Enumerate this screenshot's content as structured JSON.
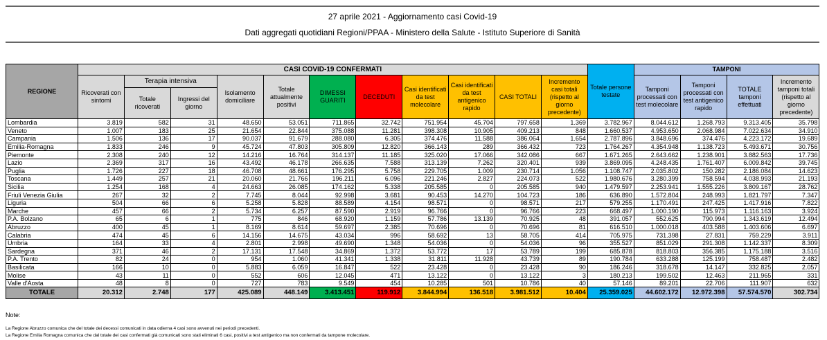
{
  "title": "27 aprile 2021 - Aggiornamento casi Covid-19",
  "subtitle": "Dati aggregati quotidiani Regioni/PPAA - Ministero della Salute - Istituto Superiore di Sanità",
  "headers": {
    "regione": "REGIONE",
    "casi_group": "CASI COVID-19 CONFERMATI",
    "tamponi_group": "TAMPONI",
    "terapia_group": "Terapia intensiva",
    "cols": [
      "Ricoverati con sintomi",
      "Totale ricoverati",
      "Ingressi del giorno",
      "Isolamento domiciliare",
      "Totale attualmente positivi",
      "DIMESSI GUARITI",
      "DECEDUTI",
      "Casi identificati da test molecolare",
      "Casi identificati da test antigenico rapido",
      "CASI TOTALI",
      "Incremento casi totali (rispetto al giorno precedente)",
      "Totale persone testate",
      "Tamponi processati con test molecolare",
      "Tamponi processati con test antigenico rapido",
      "TOTALE tamponi effettuati",
      "Incremento tamponi totali (rispetto al giorno precedente)"
    ]
  },
  "rows": [
    [
      "Lombardia",
      "3.819",
      "582",
      "31",
      "48.650",
      "53.051",
      "711.865",
      "32.742",
      "751.954",
      "45.704",
      "797.658",
      "1.369",
      "3.782.967",
      "8.044.612",
      "1.268.793",
      "9.313.405",
      "35.798"
    ],
    [
      "Veneto",
      "1.007",
      "183",
      "25",
      "21.654",
      "22.844",
      "375.088",
      "11.281",
      "398.308",
      "10.905",
      "409.213",
      "848",
      "1.660.537",
      "4.953.650",
      "2.068.984",
      "7.022.634",
      "34.910"
    ],
    [
      "Campania",
      "1.506",
      "136",
      "17",
      "90.037",
      "91.679",
      "288.080",
      "6.305",
      "374.476",
      "11.588",
      "386.064",
      "1.654",
      "2.787.896",
      "3.848.696",
      "374.476",
      "4.223.172",
      "19.689"
    ],
    [
      "Emilia-Romagna",
      "1.833",
      "246",
      "9",
      "45.724",
      "47.803",
      "305.809",
      "12.820",
      "366.143",
      "289",
      "366.432",
      "723",
      "1.764.267",
      "4.354.948",
      "1.138.723",
      "5.493.671",
      "30.756"
    ],
    [
      "Piemonte",
      "2.308",
      "240",
      "12",
      "14.216",
      "16.764",
      "314.137",
      "11.185",
      "325.020",
      "17.066",
      "342.086",
      "667",
      "1.671.265",
      "2.643.662",
      "1.238.901",
      "3.882.563",
      "17.736"
    ],
    [
      "Lazio",
      "2.369",
      "317",
      "16",
      "43.492",
      "46.178",
      "266.635",
      "7.588",
      "313.139",
      "7.262",
      "320.401",
      "939",
      "3.869.095",
      "4.248.435",
      "1.761.407",
      "6.009.842",
      "39.745"
    ],
    [
      "Puglia",
      "1.726",
      "227",
      "18",
      "46.708",
      "48.661",
      "176.295",
      "5.758",
      "229.705",
      "1.009",
      "230.714",
      "1.056",
      "1.108.747",
      "2.035.802",
      "150.282",
      "2.186.084",
      "14.623"
    ],
    [
      "Toscana",
      "1.449",
      "257",
      "21",
      "20.060",
      "21.766",
      "196.211",
      "6.096",
      "221.246",
      "2.827",
      "224.073",
      "522",
      "1.980.676",
      "3.280.399",
      "758.594",
      "4.038.993",
      "21.193"
    ],
    [
      "Sicilia",
      "1.254",
      "168",
      "4",
      "24.663",
      "26.085",
      "174.162",
      "5.338",
      "205.585",
      "0",
      "205.585",
      "940",
      "1.479.597",
      "2.253.941",
      "1.555.226",
      "3.809.167",
      "28.762"
    ],
    [
      "Friuli Venezia Giulia",
      "267",
      "32",
      "2",
      "7.745",
      "8.044",
      "92.998",
      "3.681",
      "90.453",
      "14.270",
      "104.723",
      "186",
      "636.890",
      "1.572.804",
      "248.993",
      "1.821.797",
      "7.347"
    ],
    [
      "Liguria",
      "504",
      "66",
      "6",
      "5.258",
      "5.828",
      "88.589",
      "4.154",
      "98.571",
      "0",
      "98.571",
      "217",
      "579.255",
      "1.170.491",
      "247.425",
      "1.417.916",
      "7.822"
    ],
    [
      "Marche",
      "457",
      "66",
      "2",
      "5.734",
      "6.257",
      "87.590",
      "2.919",
      "96.766",
      "0",
      "96.766",
      "223",
      "668.497",
      "1.000.190",
      "115.973",
      "1.116.163",
      "3.924"
    ],
    [
      "P.A. Bolzano",
      "65",
      "6",
      "1",
      "775",
      "846",
      "68.920",
      "1.159",
      "57.786",
      "13.139",
      "70.925",
      "48",
      "391.057",
      "552.625",
      "790.994",
      "1.343.619",
      "12.494"
    ],
    [
      "Abruzzo",
      "400",
      "45",
      "1",
      "8.169",
      "8.614",
      "59.697",
      "2.385",
      "70.696",
      "0",
      "70.696",
      "81",
      "616.510",
      "1.000.018",
      "403.588",
      "1.403.606",
      "6.697"
    ],
    [
      "Calabria",
      "474",
      "45",
      "6",
      "14.156",
      "14.675",
      "43.034",
      "996",
      "58.692",
      "13",
      "58.705",
      "414",
      "705.975",
      "731.398",
      "27.831",
      "759.229",
      "3.911"
    ],
    [
      "Umbria",
      "164",
      "33",
      "4",
      "2.801",
      "2.998",
      "49.690",
      "1.348",
      "54.036",
      "0",
      "54.036",
      "96",
      "355.527",
      "851.029",
      "291.308",
      "1.142.337",
      "8.309"
    ],
    [
      "Sardegna",
      "371",
      "46",
      "2",
      "17.131",
      "17.548",
      "34.869",
      "1.372",
      "53.772",
      "17",
      "53.789",
      "199",
      "685.878",
      "818.803",
      "356.385",
      "1.175.188",
      "3.516"
    ],
    [
      "P.A. Trento",
      "82",
      "24",
      "0",
      "954",
      "1.060",
      "41.341",
      "1.338",
      "31.811",
      "11.928",
      "43.739",
      "89",
      "190.784",
      "633.288",
      "125.199",
      "758.487",
      "2.482"
    ],
    [
      "Basilicata",
      "166",
      "10",
      "0",
      "5.883",
      "6.059",
      "16.847",
      "522",
      "23.428",
      "0",
      "23.428",
      "90",
      "186.246",
      "318.678",
      "14.147",
      "332.825",
      "2.057"
    ],
    [
      "Molise",
      "43",
      "11",
      "0",
      "552",
      "606",
      "12.045",
      "471",
      "13.122",
      "0",
      "13.122",
      "3",
      "180.213",
      "199.502",
      "12.463",
      "211.965",
      "331"
    ],
    [
      "Valle d'Aosta",
      "48",
      "8",
      "0",
      "727",
      "783",
      "9.549",
      "454",
      "10.285",
      "501",
      "10.786",
      "40",
      "57.146",
      "89.201",
      "22.706",
      "111.907",
      "632"
    ]
  ],
  "totale": [
    "TOTALE",
    "20.312",
    "2.748",
    "177",
    "425.089",
    "448.149",
    "3.413.451",
    "119.912",
    "3.844.994",
    "136.518",
    "3.981.512",
    "10.404",
    "25.359.025",
    "44.602.172",
    "12.972.398",
    "57.574.570",
    "302.734"
  ],
  "colors": {
    "header_gray": "#d9d9d9",
    "region_gray": "#a6a6a6",
    "dimessi": "#00b050",
    "deceduti": "#ff0000",
    "casi": "#ffc000",
    "persone_testate": "#00b0f0",
    "tamponi": "#b4c6e7"
  },
  "notes": {
    "label": "Note:",
    "lines": [
      "La Regione Abruzzo comunica che del totale dei decessi comunicati in data odierna 4 casi sono avvenuti nei periodi precedenti.",
      "La Regione Emilia Romagna comunica che dal totale dei casi confermati già comunicati sono stati eliminati 6 casi, positivi a test antigenico ma non confermati da tampone molecolare."
    ]
  }
}
